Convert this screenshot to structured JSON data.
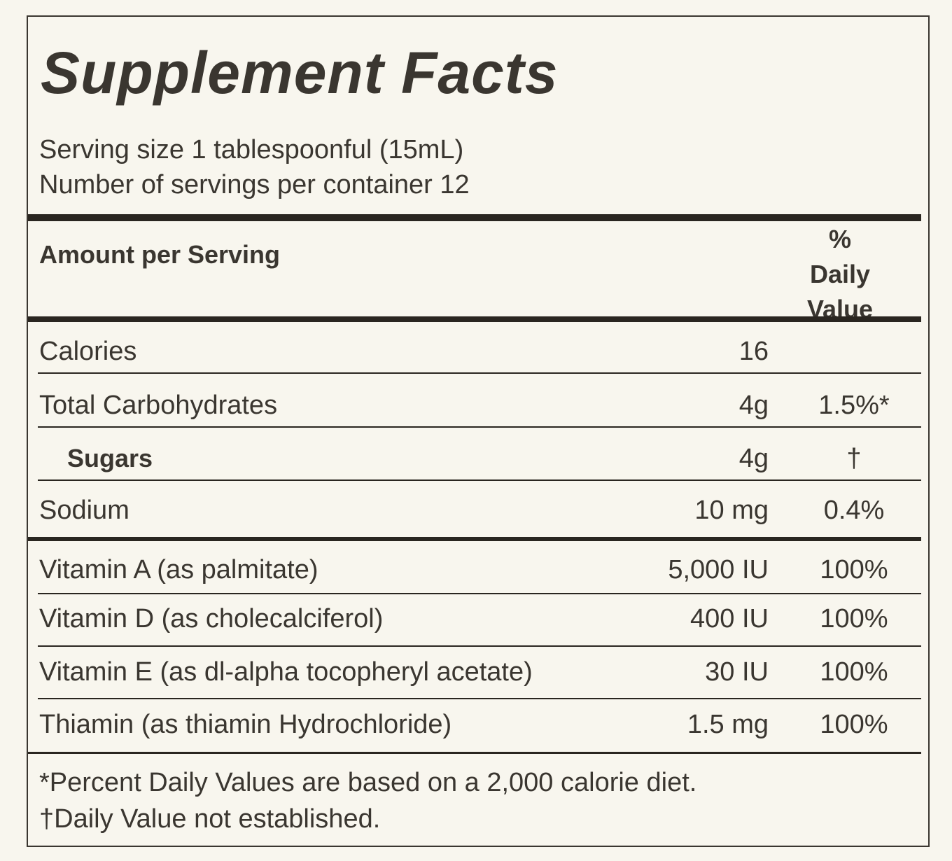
{
  "title": "Supplement Facts",
  "serving": [
    "Serving size 1 tablespoonful (15mL)",
    "Number of servings per container 12"
  ],
  "header": {
    "amount_label": "Amount per Serving",
    "daily_value_label": "% Daily Value"
  },
  "table": {
    "groups": [
      [
        {
          "label": "Calories",
          "amount": "16"
        },
        {
          "label": "Total Carbohydrates",
          "amount": "4g",
          "daily_value": "1.5%*"
        },
        {
          "label": "Sugars",
          "amount": "4g",
          "daily_value": "†",
          "bold": true
        },
        {
          "label": "Sodium",
          "amount": "10 mg",
          "daily_value": "0.4%"
        }
      ],
      [
        {
          "label": "Vitamin A (as palmitate)",
          "amount": "5,000 IU",
          "daily_value": "100%"
        },
        {
          "label": "Vitamin D (as cholecalciferol)",
          "amount": "400 IU",
          "daily_value": "100%"
        },
        {
          "label": "Vitamin E (as dl-alpha tocopheryl acetate)",
          "amount": "30 IU",
          "daily_value": "100%"
        },
        {
          "label": "Thiamin (as thiamin Hydrochloride)",
          "amount": "1.5 mg",
          "daily_value": "100%"
        }
      ]
    ]
  },
  "footnotes": [
    "*Percent Daily Values are based on a 2,000 calorie diet.",
    "†Daily Value not established."
  ]
}
